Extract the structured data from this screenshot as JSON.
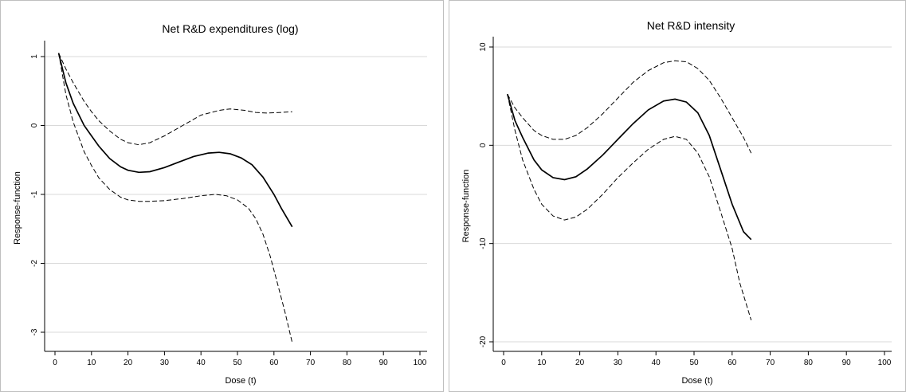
{
  "chart_data": [
    {
      "type": "line",
      "title": "Net R&D expenditures (log)",
      "xlabel": "Dose (t)",
      "ylabel": "Response-function",
      "xlim": [
        0,
        100
      ],
      "ylim": [
        -3,
        1
      ],
      "x_ticks": [
        0,
        10,
        20,
        30,
        40,
        50,
        60,
        70,
        80,
        90,
        100
      ],
      "y_ticks": [
        1,
        0,
        -1,
        -2,
        -3
      ],
      "grid": true,
      "legend": "none",
      "series": [
        {
          "style": "solid",
          "x": [
            1,
            3,
            5,
            8,
            10,
            12,
            15,
            18,
            20,
            23,
            26,
            30,
            34,
            38,
            42,
            45,
            48,
            51,
            54,
            57,
            60,
            62,
            65
          ],
          "y": [
            1.05,
            0.62,
            0.32,
            0.0,
            -0.15,
            -0.3,
            -0.48,
            -0.6,
            -0.65,
            -0.68,
            -0.67,
            -0.61,
            -0.53,
            -0.45,
            -0.4,
            -0.39,
            -0.41,
            -0.47,
            -0.57,
            -0.75,
            -1.0,
            -1.2,
            -1.47
          ]
        },
        {
          "style": "dashed",
          "x": [
            1,
            3,
            5,
            8,
            10,
            12,
            15,
            18,
            20,
            23,
            26,
            30,
            35,
            40,
            45,
            48,
            52,
            55,
            58,
            62,
            65
          ],
          "y": [
            1.05,
            0.82,
            0.62,
            0.35,
            0.2,
            0.07,
            -0.08,
            -0.2,
            -0.25,
            -0.28,
            -0.25,
            -0.15,
            0.0,
            0.15,
            0.22,
            0.24,
            0.22,
            0.19,
            0.18,
            0.19,
            0.2
          ]
        },
        {
          "style": "dashed",
          "x": [
            1,
            3,
            5,
            8,
            10,
            12,
            15,
            18,
            20,
            23,
            26,
            30,
            35,
            40,
            44,
            47,
            50,
            53,
            55,
            57,
            59,
            61,
            63,
            65
          ],
          "y": [
            1.05,
            0.45,
            0.05,
            -0.38,
            -0.58,
            -0.76,
            -0.93,
            -1.04,
            -1.08,
            -1.1,
            -1.1,
            -1.09,
            -1.06,
            -1.02,
            -1.0,
            -1.02,
            -1.08,
            -1.2,
            -1.35,
            -1.58,
            -1.9,
            -2.3,
            -2.7,
            -3.15
          ]
        }
      ]
    },
    {
      "type": "line",
      "title": "Net R&D intensity",
      "xlabel": "Dose (t)",
      "ylabel": "Response-function",
      "xlim": [
        0,
        100
      ],
      "ylim": [
        -20,
        10
      ],
      "x_ticks": [
        0,
        10,
        20,
        30,
        40,
        50,
        60,
        70,
        80,
        90,
        100
      ],
      "y_ticks": [
        10,
        0,
        -10,
        -20
      ],
      "grid": true,
      "legend": "none",
      "series": [
        {
          "style": "solid",
          "x": [
            1,
            3,
            5,
            8,
            10,
            13,
            16,
            19,
            22,
            26,
            30,
            34,
            38,
            42,
            45,
            48,
            51,
            54,
            57,
            60,
            63,
            65
          ],
          "y": [
            5.2,
            2.5,
            0.8,
            -1.5,
            -2.5,
            -3.3,
            -3.5,
            -3.2,
            -2.4,
            -1.0,
            0.6,
            2.2,
            3.6,
            4.5,
            4.7,
            4.4,
            3.3,
            1.0,
            -2.5,
            -6.0,
            -8.8,
            -9.6
          ]
        },
        {
          "style": "dashed",
          "x": [
            1,
            3,
            5,
            8,
            10,
            13,
            16,
            19,
            22,
            26,
            30,
            34,
            38,
            42,
            45,
            48,
            51,
            54,
            57,
            60,
            63,
            65
          ],
          "y": [
            5.2,
            3.8,
            2.8,
            1.5,
            1.0,
            0.6,
            0.6,
            1.0,
            1.8,
            3.2,
            4.8,
            6.4,
            7.6,
            8.4,
            8.6,
            8.5,
            7.8,
            6.6,
            4.8,
            2.8,
            0.8,
            -0.8
          ]
        },
        {
          "style": "dashed",
          "x": [
            1,
            3,
            5,
            8,
            10,
            13,
            16,
            19,
            22,
            26,
            30,
            34,
            38,
            42,
            45,
            48,
            51,
            54,
            57,
            60,
            62,
            65
          ],
          "y": [
            5.2,
            1.5,
            -1.5,
            -4.5,
            -6.0,
            -7.2,
            -7.6,
            -7.3,
            -6.5,
            -5.0,
            -3.3,
            -1.8,
            -0.4,
            0.6,
            0.9,
            0.6,
            -0.8,
            -3.2,
            -6.8,
            -10.5,
            -14.0,
            -17.8
          ]
        }
      ]
    }
  ]
}
